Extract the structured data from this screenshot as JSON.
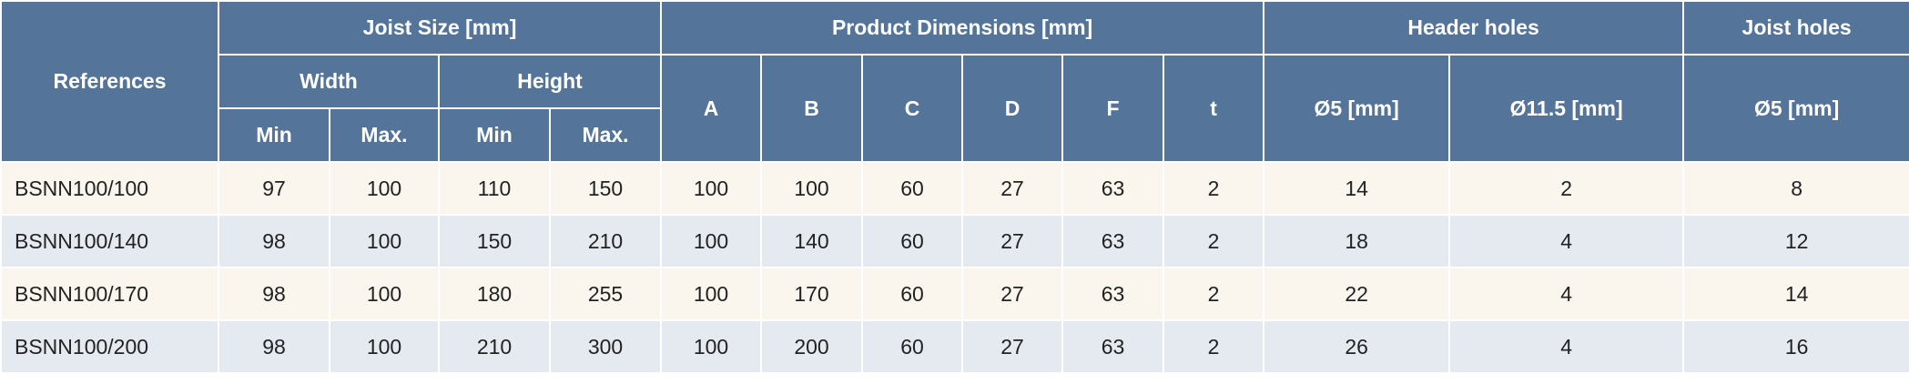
{
  "table": {
    "header": {
      "references": "References",
      "joist_size": "Joist Size [mm]",
      "width": "Width",
      "height": "Height",
      "width_min": "Min",
      "width_max": "Max.",
      "height_min": "Min",
      "height_max": "Max.",
      "product_dimensions": "Product Dimensions [mm]",
      "a": "A",
      "b": "B",
      "c": "C",
      "d": "D",
      "f": "F",
      "t": "t",
      "header_holes": "Header holes",
      "header_d5": "Ø5 [mm]",
      "header_d11_5": "Ø11.5 [mm]",
      "joist_holes": "Joist holes",
      "joist_d5": "Ø5 [mm]"
    },
    "rows": [
      [
        "BSNN100/100",
        97,
        100,
        110,
        150,
        100,
        100,
        60,
        27,
        63,
        2,
        14,
        2,
        8
      ],
      [
        "BSNN100/140",
        98,
        100,
        150,
        210,
        100,
        140,
        60,
        27,
        63,
        2,
        18,
        4,
        12
      ],
      [
        "BSNN100/170",
        98,
        100,
        180,
        255,
        100,
        170,
        60,
        27,
        63,
        2,
        22,
        4,
        14
      ],
      [
        "BSNN100/200",
        98,
        100,
        210,
        300,
        100,
        200,
        60,
        27,
        63,
        2,
        26,
        4,
        16
      ]
    ]
  }
}
